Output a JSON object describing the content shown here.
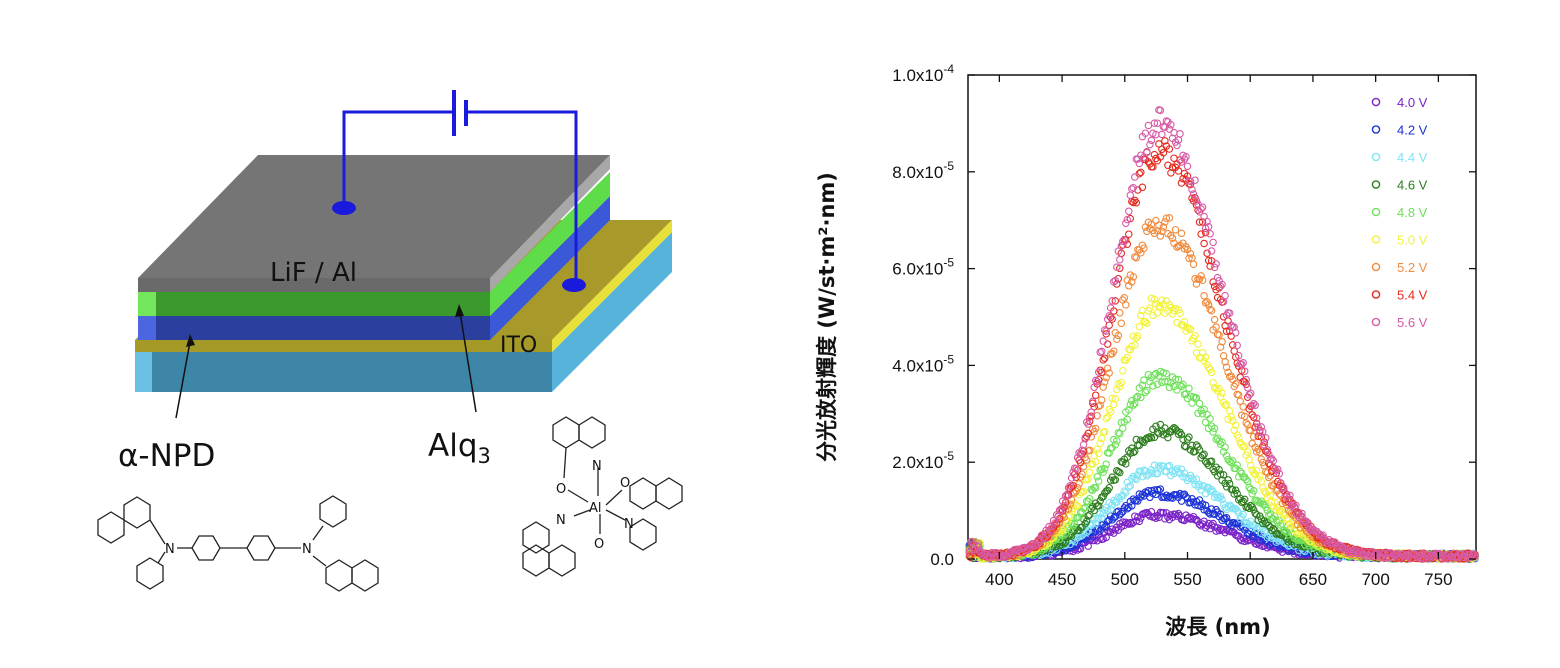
{
  "device": {
    "labels": {
      "cathode": "LiF / Al",
      "anode": "ITO",
      "htl": "α-NPD",
      "eml_base": "Alq",
      "eml_sub": "3"
    },
    "molecules": {
      "npd_atoms": [
        "N",
        "N"
      ],
      "alq_atoms": [
        "N",
        "O",
        "Al",
        "O",
        "N",
        "N",
        "O"
      ]
    },
    "colors": {
      "wire": "#1a1adc",
      "cathode_top": "#757575",
      "cathode_front": "#6a6a6a",
      "green": "#3a9a2c",
      "blue": "#2a3f9e",
      "ito": "#a79a2a",
      "glass": "#3e86a8"
    }
  },
  "chart_data": {
    "type": "scatter",
    "title": "",
    "xlabel": "波長 (nm)",
    "ylabel": "分光放射輝度 (W/st·m²·nm)",
    "xlim": [
      375,
      780
    ],
    "ylim": [
      0,
      0.0001
    ],
    "x_ticks": [
      400,
      450,
      500,
      550,
      600,
      650,
      700,
      750
    ],
    "y_ticks": [
      {
        "mant": "0.0",
        "exp": ""
      },
      {
        "mant": "2.0x10",
        "exp": "-5"
      },
      {
        "mant": "4.0x10",
        "exp": "-5"
      },
      {
        "mant": "6.0x10",
        "exp": "-5"
      },
      {
        "mant": "8.0x10",
        "exp": "-5"
      },
      {
        "mant": "1.0x10",
        "exp": "-4"
      }
    ],
    "legend_position": "top-right",
    "series": [
      {
        "name": "4.0 V",
        "color": "#7a22c8",
        "peak_nm": 527,
        "peak": 8.5e-06
      },
      {
        "name": "4.2 V",
        "color": "#1b32d6",
        "peak_nm": 527,
        "peak": 1.3e-05
      },
      {
        "name": "4.4 V",
        "color": "#7fe3f4",
        "peak_nm": 527,
        "peak": 1.8e-05
      },
      {
        "name": "4.6 V",
        "color": "#2d7d1e",
        "peak_nm": 527,
        "peak": 2.6e-05
      },
      {
        "name": "4.8 V",
        "color": "#6fe05a",
        "peak_nm": 527,
        "peak": 3.7e-05
      },
      {
        "name": "5.0 V",
        "color": "#f2f23a",
        "peak_nm": 527,
        "peak": 5.18e-05
      },
      {
        "name": "5.2 V",
        "color": "#f08a3c",
        "peak_nm": 527,
        "peak": 6.88e-05
      },
      {
        "name": "5.4 V",
        "color": "#e52a1e",
        "peak_nm": 527,
        "peak": 8.35e-05
      },
      {
        "name": "5.6 V",
        "color": "#d65aa6",
        "peak_nm": 527,
        "peak": 8.93e-05
      }
    ]
  }
}
